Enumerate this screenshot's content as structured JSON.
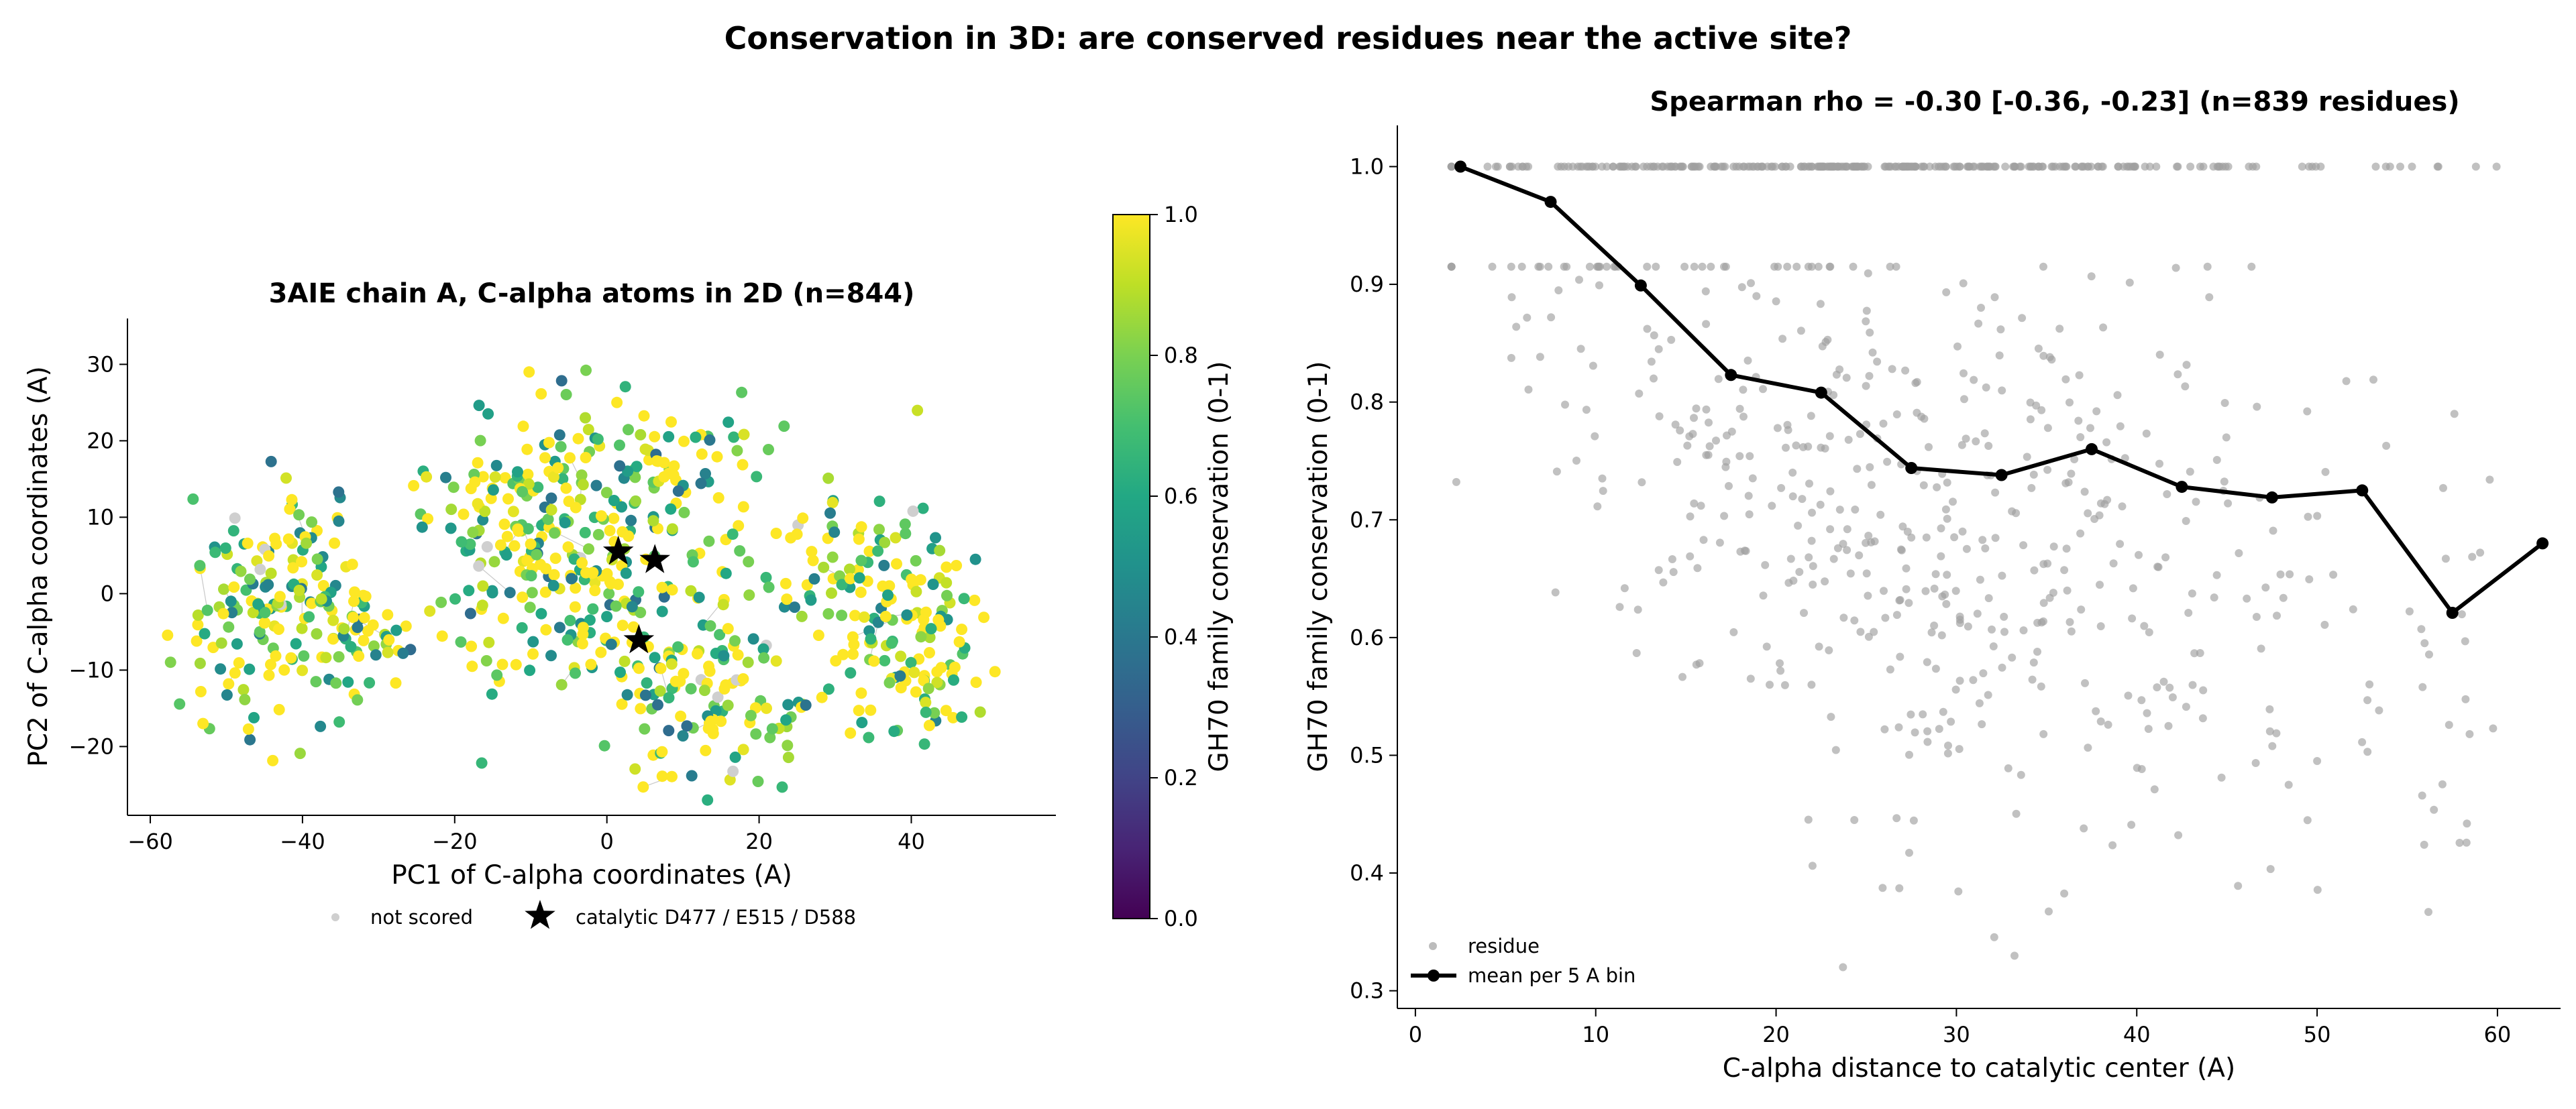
{
  "figure": {
    "title": "Conservation in 3D: are conserved residues near the active site?"
  },
  "chart_data": [
    {
      "type": "scatter",
      "title": "3AIE chain A, C-alpha atoms in 2D (n=844)",
      "xlabel": "PC1 of C-alpha coordinates (A)",
      "ylabel": "PC2 of C-alpha coordinates (A)",
      "xlim": [
        -63,
        59
      ],
      "ylim": [
        -29,
        36
      ],
      "xticks": [
        "−60",
        "−40",
        "−20",
        "0",
        "20",
        "40"
      ],
      "xtick_values": [
        -60,
        -40,
        -20,
        0,
        20,
        40
      ],
      "yticks": [
        "−20",
        "−10",
        "0",
        "10",
        "20",
        "30"
      ],
      "ytick_values": [
        -20,
        -10,
        0,
        10,
        20,
        30
      ],
      "n_points": 844,
      "colormap": "viridis",
      "colorbar": {
        "label": "GH70 family conservation (0-1)",
        "range": [
          0,
          1
        ],
        "ticks": [
          "0.0",
          "0.2",
          "0.4",
          "0.6",
          "0.8",
          "1.0"
        ]
      },
      "catalytic_residues": [
        {
          "x": 1.5,
          "y": 5.5
        },
        {
          "x": 6.3,
          "y": 4.4
        },
        {
          "x": 4.2,
          "y": -6.1
        }
      ],
      "legend": {
        "position": "below",
        "entries": [
          {
            "label": "not scored",
            "marker": "point",
            "color": "#cfcfcf"
          },
          {
            "label": "catalytic D477 / E515 / D588",
            "marker": "star",
            "color": "#000000"
          }
        ]
      },
      "grid": false
    },
    {
      "type": "scatter",
      "title": "Spearman rho = -0.30 [-0.36, -0.23] (n=839 residues)",
      "xlabel": "C-alpha distance to catalytic center (A)",
      "ylabel": "GH70 family conservation (0-1)",
      "xlim": [
        -1,
        63.5
      ],
      "ylim": [
        0.285,
        1.035
      ],
      "xticks": [
        "0",
        "10",
        "20",
        "30",
        "40",
        "50",
        "60"
      ],
      "xtick_values": [
        0,
        10,
        20,
        30,
        40,
        50,
        60
      ],
      "yticks": [
        "0.3",
        "0.4",
        "0.5",
        "0.6",
        "0.7",
        "0.8",
        "0.9",
        "1.0"
      ],
      "ytick_values": [
        0.3,
        0.4,
        0.5,
        0.6,
        0.7,
        0.8,
        0.9,
        1.0
      ],
      "n_points": 839,
      "series": [
        {
          "name": "residue",
          "kind": "points",
          "color": "#a0a0a0"
        },
        {
          "name": "mean per 5 A bin",
          "kind": "line",
          "color": "#000000",
          "x": [
            2.5,
            7.5,
            12.5,
            17.5,
            22.5,
            27.5,
            32.5,
            37.5,
            42.5,
            47.5,
            52.5,
            57.5,
            62.5
          ],
          "y": [
            1.0,
            0.97,
            0.899,
            0.823,
            0.808,
            0.744,
            0.738,
            0.76,
            0.728,
            0.719,
            0.725,
            0.621,
            0.68
          ]
        }
      ],
      "legend": {
        "position": "lower-left",
        "entries": [
          {
            "label": "residue",
            "marker": "point",
            "color": "#a0a0a0"
          },
          {
            "label": "mean per 5 A bin",
            "marker": "line-dot",
            "color": "#000000"
          }
        ]
      },
      "grid": false
    }
  ]
}
